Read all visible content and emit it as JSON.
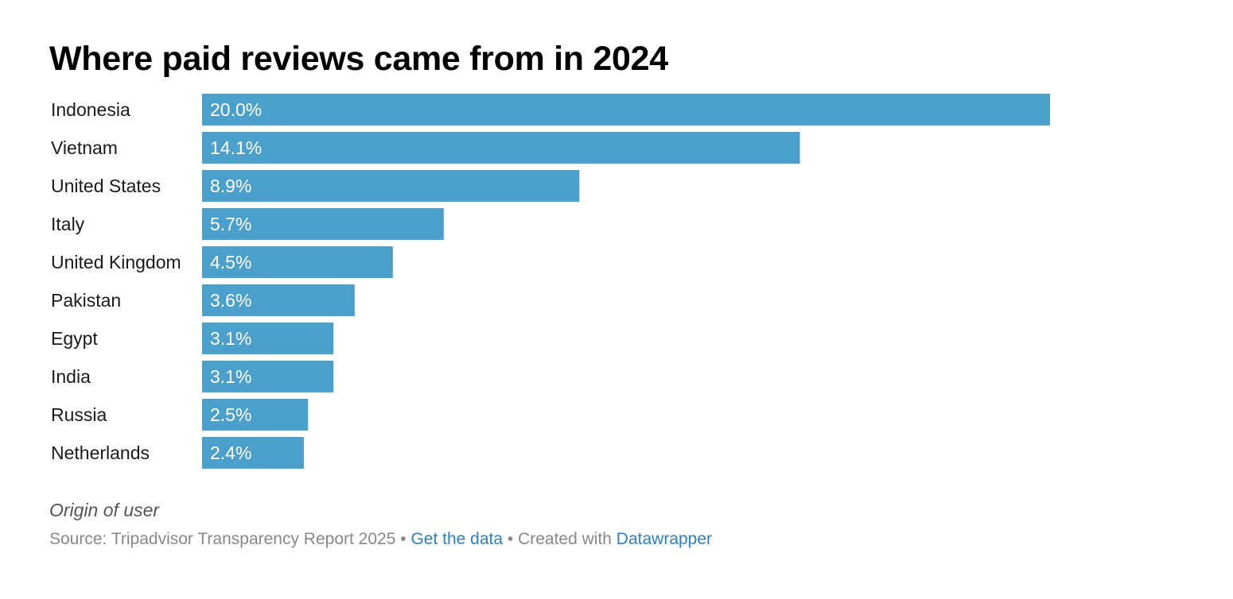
{
  "chart_data": {
    "type": "bar",
    "orientation": "horizontal",
    "title": "Where paid reviews came from in 2024",
    "categories": [
      "Indonesia",
      "Vietnam",
      "United States",
      "Italy",
      "United Kingdom",
      "Pakistan",
      "Egypt",
      "India",
      "Russia",
      "Netherlands"
    ],
    "values": [
      20.0,
      14.1,
      8.9,
      5.7,
      4.5,
      3.6,
      3.1,
      3.1,
      2.5,
      2.4
    ],
    "value_labels": [
      "20.0%",
      "14.1%",
      "8.9%",
      "5.7%",
      "4.5%",
      "3.6%",
      "3.1%",
      "3.1%",
      "2.5%",
      "2.4%"
    ],
    "unit": "%",
    "xlim": [
      0,
      20
    ],
    "grid": false,
    "bar_color": "#4a9fcb"
  },
  "notes": "Origin of user",
  "footer": {
    "source_text": "Source: Tripadvisor Transparency Report 2025",
    "separator": " • ",
    "get_data_link": "Get the data",
    "created_with_text": "Created with",
    "datawrapper_link": "Datawrapper"
  },
  "colors": {
    "bar": "#4a9fcb",
    "link": "#2e7fbf",
    "footer_text": "#888888"
  }
}
